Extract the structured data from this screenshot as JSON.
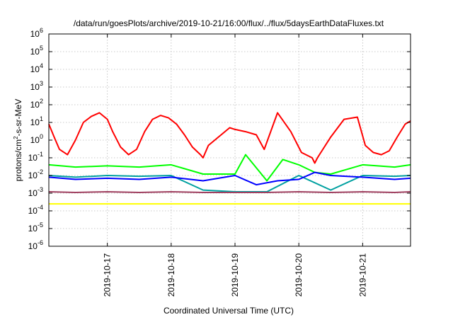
{
  "chart_data": {
    "type": "line",
    "title": "/data/run/goesPlots/archive/2019-10-21/16:00/flux/../flux/5daysEarthDataFluxes.txt",
    "xlabel": "Coordinated Universal Time (UTC)",
    "ylabel": {
      "base": "protons/cm",
      "sup": "2",
      "rest": "-s-sr-MeV"
    },
    "x_scale": "time",
    "xlim": [
      "2019-10-16T02:00",
      "2019-10-21T18:00"
    ],
    "x_ticks": [
      "2019-10-17",
      "2019-10-18",
      "2019-10-19",
      "2019-10-20",
      "2019-10-21"
    ],
    "y_scale": "log",
    "ylim": [
      1e-06,
      1000000.0
    ],
    "y_ticks": [
      {
        "base": "10",
        "exp": "-6"
      },
      {
        "base": "10",
        "exp": "-5"
      },
      {
        "base": "10",
        "exp": "-4"
      },
      {
        "base": "10",
        "exp": "-3"
      },
      {
        "base": "10",
        "exp": "-2"
      },
      {
        "base": "10",
        "exp": "-1"
      },
      {
        "base": "10",
        "exp": "0"
      },
      {
        "base": "10",
        "exp": "1"
      },
      {
        "base": "10",
        "exp": "2"
      },
      {
        "base": "10",
        "exp": "3"
      },
      {
        "base": "10",
        "exp": "4"
      },
      {
        "base": "10",
        "exp": "5"
      },
      {
        "base": "10",
        "exp": "6"
      }
    ],
    "grid": true,
    "series": [
      {
        "color": "#ff0000",
        "x": [
          "2019-10-16T02:00",
          "2019-10-16T04:00",
          "2019-10-16T06:00",
          "2019-10-16T09:00",
          "2019-10-16T12:00",
          "2019-10-16T15:00",
          "2019-10-16T18:00",
          "2019-10-16T21:00",
          "2019-10-17T00:00",
          "2019-10-17T02:00",
          "2019-10-17T05:00",
          "2019-10-17T08:00",
          "2019-10-17T11:00",
          "2019-10-17T14:00",
          "2019-10-17T17:00",
          "2019-10-17T20:00",
          "2019-10-17T23:00",
          "2019-10-18T02:00",
          "2019-10-18T05:00",
          "2019-10-18T08:00",
          "2019-10-18T11:00",
          "2019-10-18T12:00",
          "2019-10-18T14:00",
          "2019-10-18T22:00",
          "2019-10-19T00:00",
          "2019-10-19T04:00",
          "2019-10-19T08:00",
          "2019-10-19T11:00",
          "2019-10-19T16:00",
          "2019-10-19T21:00",
          "2019-10-20T01:00",
          "2019-10-20T05:00",
          "2019-10-20T06:00",
          "2019-10-20T07:00",
          "2019-10-20T12:00",
          "2019-10-20T17:00",
          "2019-10-20T22:00",
          "2019-10-21T01:00",
          "2019-10-21T04:00",
          "2019-10-21T07:00",
          "2019-10-21T10:00",
          "2019-10-21T13:00",
          "2019-10-21T16:00",
          "2019-10-21T18:00"
        ],
        "y": [
          8,
          1.5,
          0.3,
          0.15,
          1,
          10,
          22,
          35,
          15,
          3,
          0.4,
          0.15,
          0.3,
          3,
          15,
          25,
          18,
          8,
          2,
          0.4,
          0.15,
          0.1,
          0.5,
          5,
          4,
          3,
          2,
          0.3,
          35,
          3,
          0.2,
          0.1,
          0.05,
          0.1,
          1.5,
          15,
          20,
          0.5,
          0.2,
          0.15,
          0.25,
          1.5,
          8,
          12
        ]
      },
      {
        "color": "#00ff00",
        "x": [
          "2019-10-16T02:00",
          "2019-10-16T12:00",
          "2019-10-17T00:00",
          "2019-10-17T12:00",
          "2019-10-18T00:00",
          "2019-10-18T12:00",
          "2019-10-19T00:00",
          "2019-10-19T04:00",
          "2019-10-19T12:00",
          "2019-10-19T18:00",
          "2019-10-20T00:00",
          "2019-10-20T06:00",
          "2019-10-20T12:00",
          "2019-10-21T00:00",
          "2019-10-21T12:00",
          "2019-10-21T18:00"
        ],
        "y": [
          0.04,
          0.03,
          0.035,
          0.03,
          0.04,
          0.012,
          0.012,
          0.15,
          0.005,
          0.08,
          0.04,
          0.015,
          0.012,
          0.04,
          0.03,
          0.04
        ]
      },
      {
        "color": "#00a0a0",
        "x": [
          "2019-10-16T02:00",
          "2019-10-16T12:00",
          "2019-10-17T00:00",
          "2019-10-17T12:00",
          "2019-10-18T00:00",
          "2019-10-18T12:00",
          "2019-10-19T00:00",
          "2019-10-19T12:00",
          "2019-10-20T00:00",
          "2019-10-20T12:00",
          "2019-10-21T00:00",
          "2019-10-21T12:00",
          "2019-10-21T18:00"
        ],
        "y": [
          0.01,
          0.008,
          0.01,
          0.009,
          0.01,
          0.0015,
          0.0012,
          0.0012,
          0.01,
          0.0015,
          0.01,
          0.009,
          0.01
        ]
      },
      {
        "color": "#0000ff",
        "x": [
          "2019-10-16T02:00",
          "2019-10-16T12:00",
          "2019-10-17T00:00",
          "2019-10-17T12:00",
          "2019-10-18T00:00",
          "2019-10-18T12:00",
          "2019-10-19T00:00",
          "2019-10-19T08:00",
          "2019-10-19T16:00",
          "2019-10-20T00:00",
          "2019-10-20T06:00",
          "2019-10-20T12:00",
          "2019-10-21T00:00",
          "2019-10-21T12:00",
          "2019-10-21T18:00"
        ],
        "y": [
          0.008,
          0.006,
          0.007,
          0.006,
          0.008,
          0.005,
          0.01,
          0.003,
          0.005,
          0.006,
          0.015,
          0.01,
          0.008,
          0.006,
          0.007
        ]
      },
      {
        "color": "#a04060",
        "x": [
          "2019-10-16T02:00",
          "2019-10-16T12:00",
          "2019-10-17T00:00",
          "2019-10-17T12:00",
          "2019-10-18T00:00",
          "2019-10-18T12:00",
          "2019-10-19T00:00",
          "2019-10-19T12:00",
          "2019-10-20T00:00",
          "2019-10-20T12:00",
          "2019-10-21T00:00",
          "2019-10-21T12:00",
          "2019-10-21T18:00"
        ],
        "y": [
          0.0012,
          0.0011,
          0.0012,
          0.0011,
          0.0012,
          0.0011,
          0.0011,
          0.0011,
          0.0012,
          0.0011,
          0.0012,
          0.0011,
          0.0012
        ]
      },
      {
        "color": "#ffff00",
        "x": [
          "2019-10-16T02:00",
          "2019-10-17T00:00",
          "2019-10-18T00:00",
          "2019-10-19T00:00",
          "2019-10-20T00:00",
          "2019-10-21T00:00",
          "2019-10-21T18:00"
        ],
        "y": [
          0.00025,
          0.00025,
          0.00025,
          0.00025,
          0.00025,
          0.00025,
          0.00025
        ]
      }
    ]
  }
}
